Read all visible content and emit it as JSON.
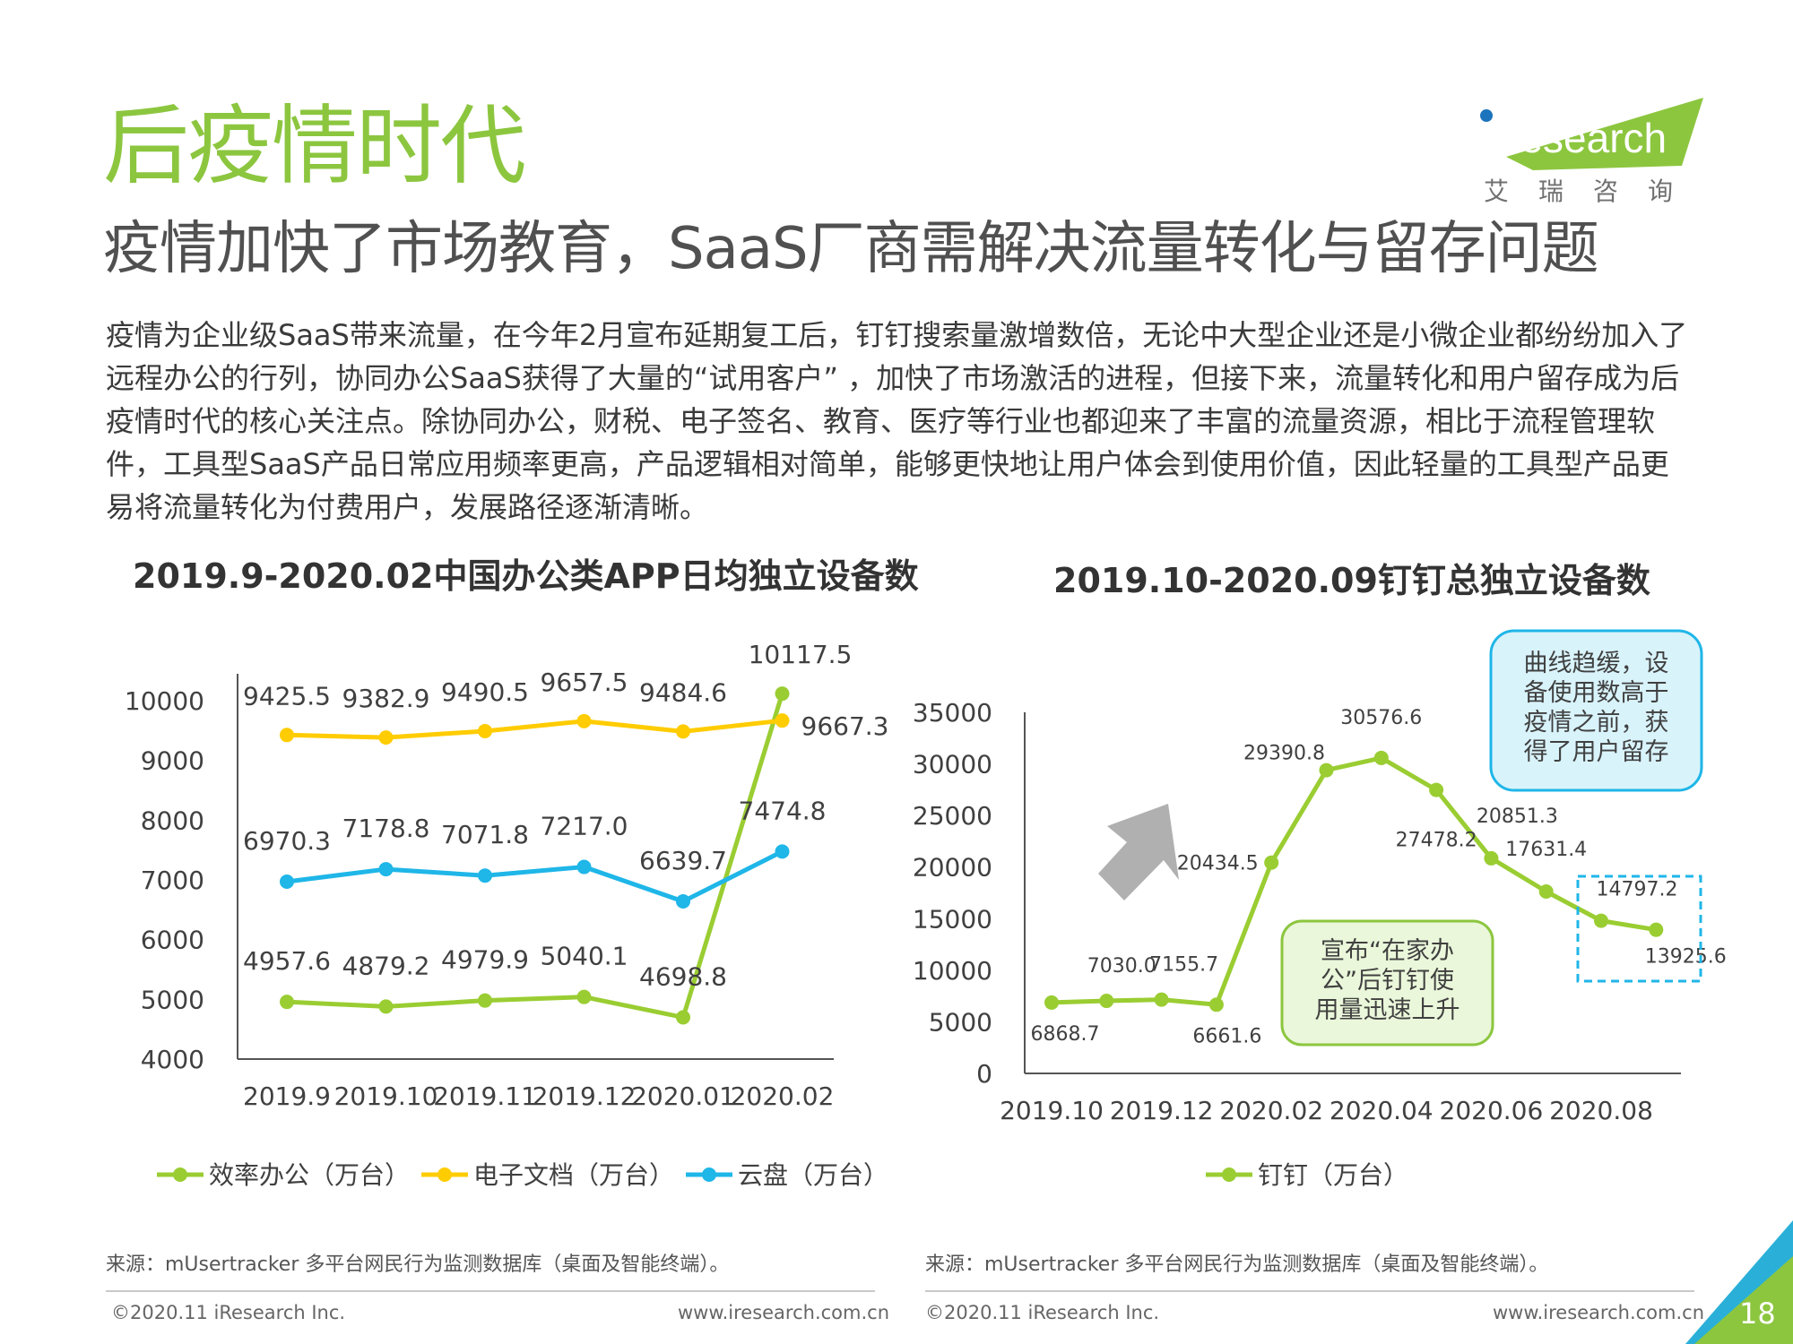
{
  "header": {
    "section_title": "后疫情时代",
    "headline": "疫情加快了市场教育，SaaS厂商需解决流量转化与留存问题",
    "body": "疫情为企业级SaaS带来流量，在今年2月宣布延期复工后，钉钉搜索量激增数倍，无论中大型企业还是小微企业都纷纷加入了远程办公的行列，协同办公SaaS获得了大量的“试用客户” ，加快了市场激活的进程，但接下来，流量转化和用户留存成为后疫情时代的核心关注点。除协同办公，财税、电子签名、教育、医疗等行业也都迎来了丰富的流量资源，相比于流程管理软件，工具型SaaS产品日常应用频率更高，产品逻辑相对简单，能够更快地让用户体会到使用价值，因此轻量的工具型产品更易将流量转化为付费用户，发展路径逐渐清晰。"
  },
  "logo": {
    "brand": "iResearch",
    "cn": "艾瑞咨询",
    "accent": "#8cc63f"
  },
  "footer": {
    "left_source": "来源：mUsertracker 多平台网民行为监测数据库（桌面及智能终端）。",
    "right_source": "来源：mUsertracker 多平台网民行为监测数据库（桌面及智能终端）。",
    "left_copyright": "©2020.11 iResearch Inc.",
    "left_site": "www.iresearch.com.cn",
    "right_copyright": "©2020.11 iResearch Inc.",
    "right_site": "www.iresearch.com.cn",
    "page_number": "18"
  },
  "notes": {
    "upper": "曲线趋缓，设\n备使用数高于\n疫情之前，获\n得了用户留存",
    "lower": "宣布“在家办\n公”后钉钉使\n用量迅速上升"
  },
  "chart_data": [
    {
      "type": "line",
      "title": "2019.9-2020.02中国办公类APP日均独立设备数",
      "categories": [
        "2019.9",
        "2019.10",
        "2019.11",
        "2019.12",
        "2020.01",
        "2020.02"
      ],
      "ylim": [
        4000,
        10000
      ],
      "yticks": [
        4000,
        5000,
        6000,
        7000,
        8000,
        9000,
        10000
      ],
      "legend_position": "bottom",
      "grid": false,
      "series": [
        {
          "name": "效率办公（万台）",
          "color": "#9acd32",
          "values": [
            4957.6,
            4879.2,
            4979.9,
            5040.1,
            4698.8,
            10117.5
          ]
        },
        {
          "name": "电子文档（万台）",
          "color": "#ffcc00",
          "values": [
            9425.5,
            9382.9,
            9490.5,
            9657.5,
            9484.6,
            9667.3
          ]
        },
        {
          "name": "云盘（万台）",
          "color": "#1fb6e8",
          "values": [
            6970.3,
            7178.8,
            7071.8,
            7217.0,
            6639.7,
            7474.8
          ]
        }
      ]
    },
    {
      "type": "line",
      "title": "2019.10-2020.09钉钉总独立设备数",
      "categories": [
        "2019.10",
        "2019.11",
        "2019.12",
        "2020.01",
        "2020.02",
        "2020.03",
        "2020.04",
        "2020.05",
        "2020.06",
        "2020.07",
        "2020.08",
        "2020.09"
      ],
      "tick_labels": [
        "2019.10",
        "2019.12",
        "2020.02",
        "2020.04",
        "2020.06",
        "2020.08"
      ],
      "ylim": [
        0,
        35000
      ],
      "yticks": [
        0,
        5000,
        10000,
        15000,
        20000,
        25000,
        30000,
        35000
      ],
      "legend_position": "bottom",
      "grid": false,
      "series": [
        {
          "name": "钉钉（万台）",
          "color": "#9acd32",
          "values": [
            6868.7,
            7030.0,
            7155.7,
            6661.6,
            20434.5,
            29390.8,
            30576.6,
            27478.2,
            20851.3,
            17631.4,
            14797.2,
            13925.6
          ]
        }
      ]
    }
  ]
}
